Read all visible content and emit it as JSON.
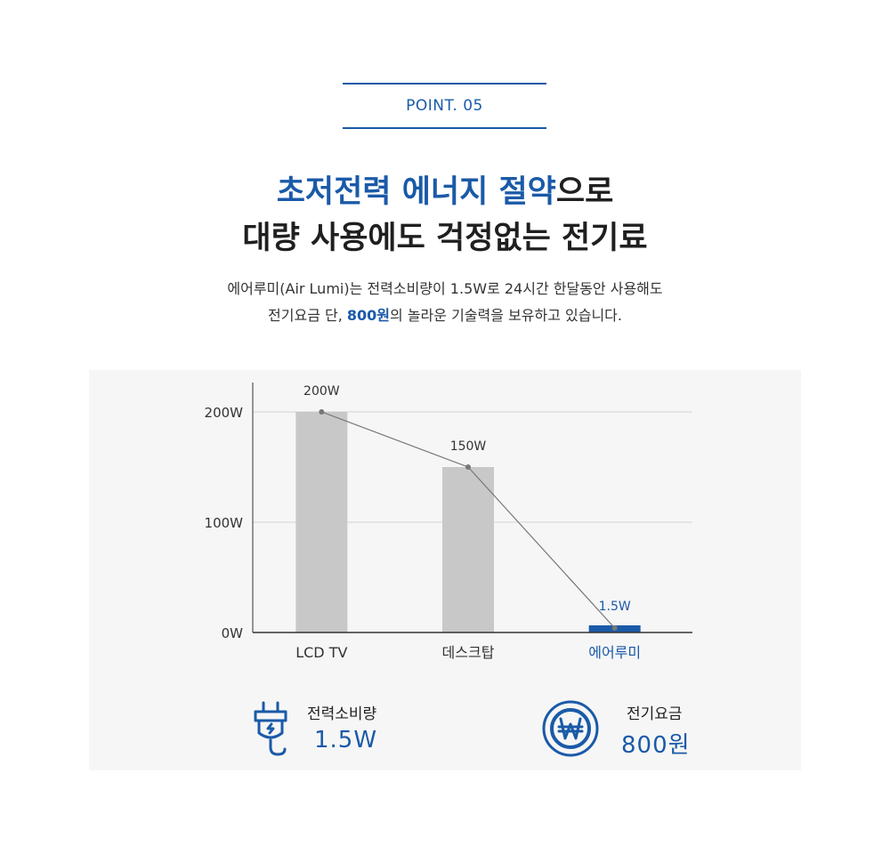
{
  "point": {
    "label": "POINT. 05"
  },
  "headline": {
    "line1_accent": "초저전력 에너지 절약",
    "line1_rest": "으로",
    "line2": "대량 사용에도 걱정없는 전기료"
  },
  "description": {
    "line1": "에어루미(Air Lumi)는 전력소비량이 1.5W로 24시간 한달동안 사용해도",
    "line2_before": "전기요금 단, ",
    "line2_accent": "800원",
    "line2_after": "의 놀라운 기술력을 보유하고 있습니다."
  },
  "chart_data": {
    "type": "bar",
    "categories": [
      "LCD TV",
      "데스크탑",
      "에어루미"
    ],
    "values": [
      200,
      150,
      1.5
    ],
    "data_labels": [
      "200W",
      "150W",
      "1.5W"
    ],
    "y_ticks": [
      0,
      100,
      200
    ],
    "y_tick_labels": [
      "0W",
      "100W",
      "200W"
    ],
    "ylim": [
      0,
      200
    ],
    "grid": true,
    "overlay_line": true,
    "colors": {
      "bar": "#c8c8c8",
      "highlight_bar": "#1a5aa8",
      "line": "#777777",
      "highlight_text": "#1a5aa8"
    },
    "highlight_index": 2
  },
  "stats": [
    {
      "icon": "plug-icon",
      "label": "전력소비량",
      "value": "1.5W"
    },
    {
      "icon": "won-icon",
      "label": "전기요금",
      "value": "800원"
    }
  ]
}
